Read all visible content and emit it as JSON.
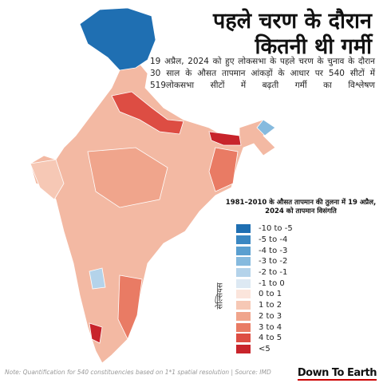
{
  "header": {
    "title_lines": [
      "पहले चरण के दौरान",
      "कितनी थी गर्मी"
    ],
    "description": "19 अप्रैल, 2024 को हुए लोकसभा के पहले चरण के चुनाव के दौरान 30 साल के औसत तापमान आंकड़ों के आधार पर 540 सीटों में 519लोकसभा सीटों में बढ़ती गर्मी का विश्लेषण"
  },
  "legend": {
    "title": "1981–2010 के औसत तापमान की तुलना में 19 अप्रैल, 2024 को तापमान विसंगति",
    "unit": "सेल्सियस",
    "items": [
      {
        "label": "-10 to -5",
        "color": "#1f6fb2"
      },
      {
        "label": "-5 to -4",
        "color": "#3a87c2"
      },
      {
        "label": "-4 to -3",
        "color": "#5a9fd0"
      },
      {
        "label": "-3 to -2",
        "color": "#86bade"
      },
      {
        "label": "-2 to -1",
        "color": "#b4d3ea"
      },
      {
        "label": "-1 to 0",
        "color": "#dde9f3"
      },
      {
        "label": "0 to 1",
        "color": "#fbe5dc"
      },
      {
        "label": "1 to 2",
        "color": "#f6c8b5"
      },
      {
        "label": "2 to 3",
        "color": "#f0a58c"
      },
      {
        "label": "3 to 4",
        "color": "#e97b64"
      },
      {
        "label": "4 to 5",
        "color": "#dd4d43"
      },
      {
        "label": "<5",
        "color": "#c8242b"
      }
    ]
  },
  "footer": {
    "note": "Note: Quantification for 540 constituencies based on 1*1 spatial resolution | Source: IMD",
    "brand": "Down To Earth"
  }
}
